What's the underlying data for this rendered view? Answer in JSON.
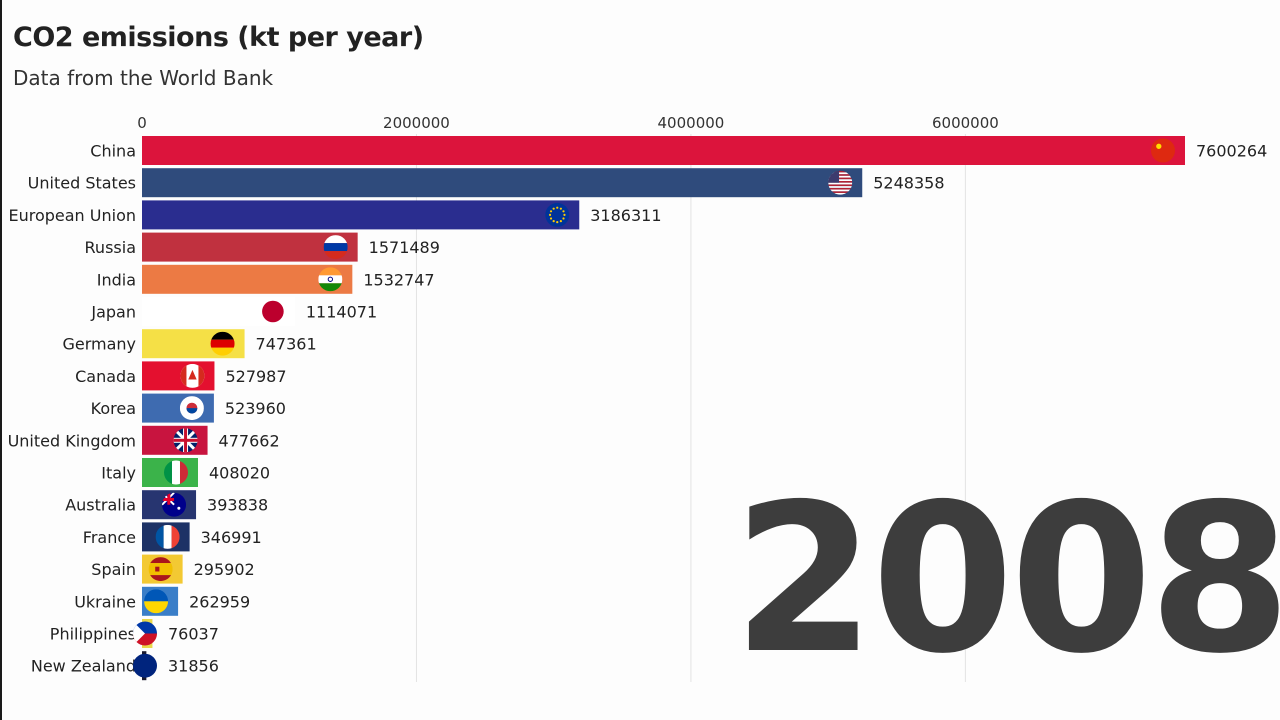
{
  "chart_data": {
    "type": "bar",
    "orientation": "horizontal",
    "title": "CO2 emissions (kt per year)",
    "subtitle": "Data from the World Bank",
    "year": "2008",
    "xlim": [
      0,
      7600264
    ],
    "xticks": [
      0,
      2000000,
      4000000,
      6000000
    ],
    "grid": true,
    "categories": [
      "China",
      "United States",
      "European Union",
      "Russia",
      "India",
      "Japan",
      "Germany",
      "Canada",
      "Korea",
      "United Kingdom",
      "Italy",
      "Australia",
      "France",
      "Spain",
      "Ukraine",
      "Philippines",
      "New Zealand"
    ],
    "values": [
      7600264,
      5248358,
      3186311,
      1571489,
      1532747,
      1114071,
      747361,
      527987,
      523960,
      477662,
      408020,
      393838,
      346991,
      295902,
      262959,
      76037,
      31856
    ],
    "bar_colors": [
      "#dc143c",
      "#2f4b7c",
      "#2a2d8f",
      "#c0313f",
      "#ec7a44",
      "#ffffff",
      "#f5e046",
      "#e4102f",
      "#3e6bb0",
      "#c8143f",
      "#3bb34a",
      "#273570",
      "#1d3266",
      "#f3c933",
      "#3a7ec8",
      "#e8d84a",
      "#1a1a2e"
    ],
    "flag_icons": [
      "china-flag-icon",
      "usa-flag-icon",
      "eu-flag-icon",
      "russia-flag-icon",
      "india-flag-icon",
      "japan-flag-icon",
      "germany-flag-icon",
      "canada-flag-icon",
      "korea-flag-icon",
      "uk-flag-icon",
      "italy-flag-icon",
      "australia-flag-icon",
      "france-flag-icon",
      "spain-flag-icon",
      "ukraine-flag-icon",
      "philippines-flag-icon",
      "new-zealand-flag-icon"
    ]
  }
}
